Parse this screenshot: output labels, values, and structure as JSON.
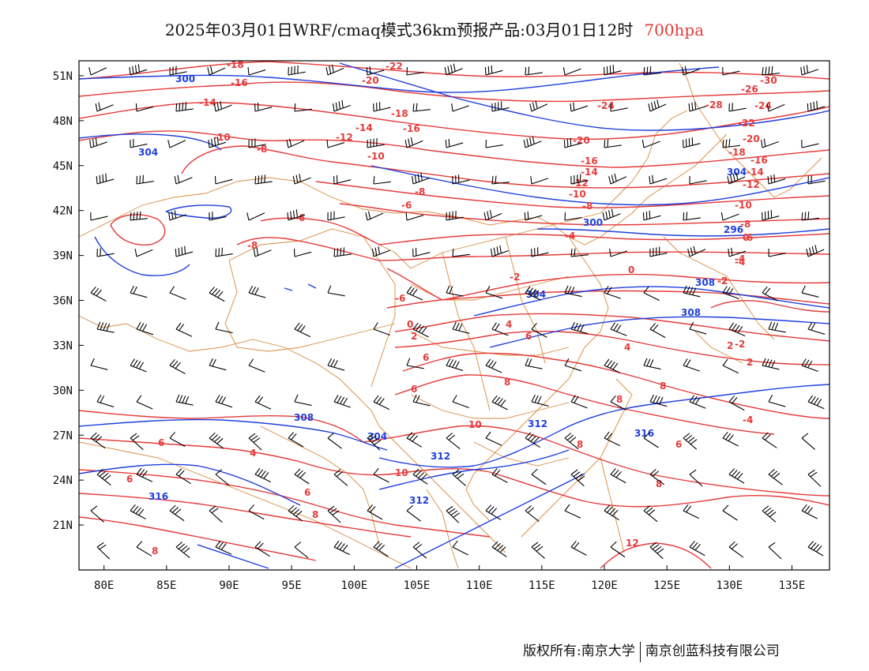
{
  "title": {
    "main": "2025年03月01日WRF/cmaq模式36km预报产品:03月01日12时",
    "level": "700hpa"
  },
  "footer": {
    "left": "版权所有:南京大学",
    "right": "南京创蓝科技有限公司"
  },
  "map": {
    "lon_range": [
      78,
      138
    ],
    "lat_range": [
      18,
      52
    ],
    "lon_ticks": [
      "80E",
      "85E",
      "90E",
      "95E",
      "100E",
      "105E",
      "110E",
      "115E",
      "120E",
      "125E",
      "130E",
      "135E"
    ],
    "lat_ticks": [
      "51N",
      "48N",
      "45N",
      "42N",
      "39N",
      "36N",
      "33N",
      "30N",
      "27N",
      "24N",
      "21N"
    ],
    "colors": {
      "temperature": "#e53b3b",
      "height": "#1f3fdd",
      "border": "#d88a3c",
      "wind": "#000000"
    },
    "temperature_labels": [
      "-18",
      "-16",
      "-22",
      "-20",
      "-14",
      "-18",
      "-16",
      "-10",
      "-8",
      "-14",
      "-12",
      "-10",
      "-8",
      "-6",
      "-6",
      "-8",
      "-6",
      "-4",
      "-2",
      "-4",
      "0",
      "-24",
      "-28",
      "-26",
      "-30",
      "-24",
      "-22",
      "-20",
      "-20",
      "-18",
      "-16",
      "-16",
      "-14",
      "-14",
      "-12",
      "-12",
      "-10",
      "-10",
      "-8",
      "-8",
      "-6",
      "-4",
      "-2",
      "0",
      "-2",
      "2",
      "4",
      "6",
      "8",
      "6",
      "6",
      "8",
      "10",
      "8",
      "6",
      "6",
      "4",
      "6",
      "8",
      "6",
      "8",
      "10",
      "12",
      "8",
      "8",
      "2",
      "4",
      "2",
      "-4",
      "-2",
      "0"
    ],
    "height_labels": [
      "300",
      "304",
      "300",
      "304",
      "308",
      "308",
      "304",
      "312",
      "312",
      "316",
      "316",
      "312",
      "308",
      "304",
      "296"
    ]
  }
}
